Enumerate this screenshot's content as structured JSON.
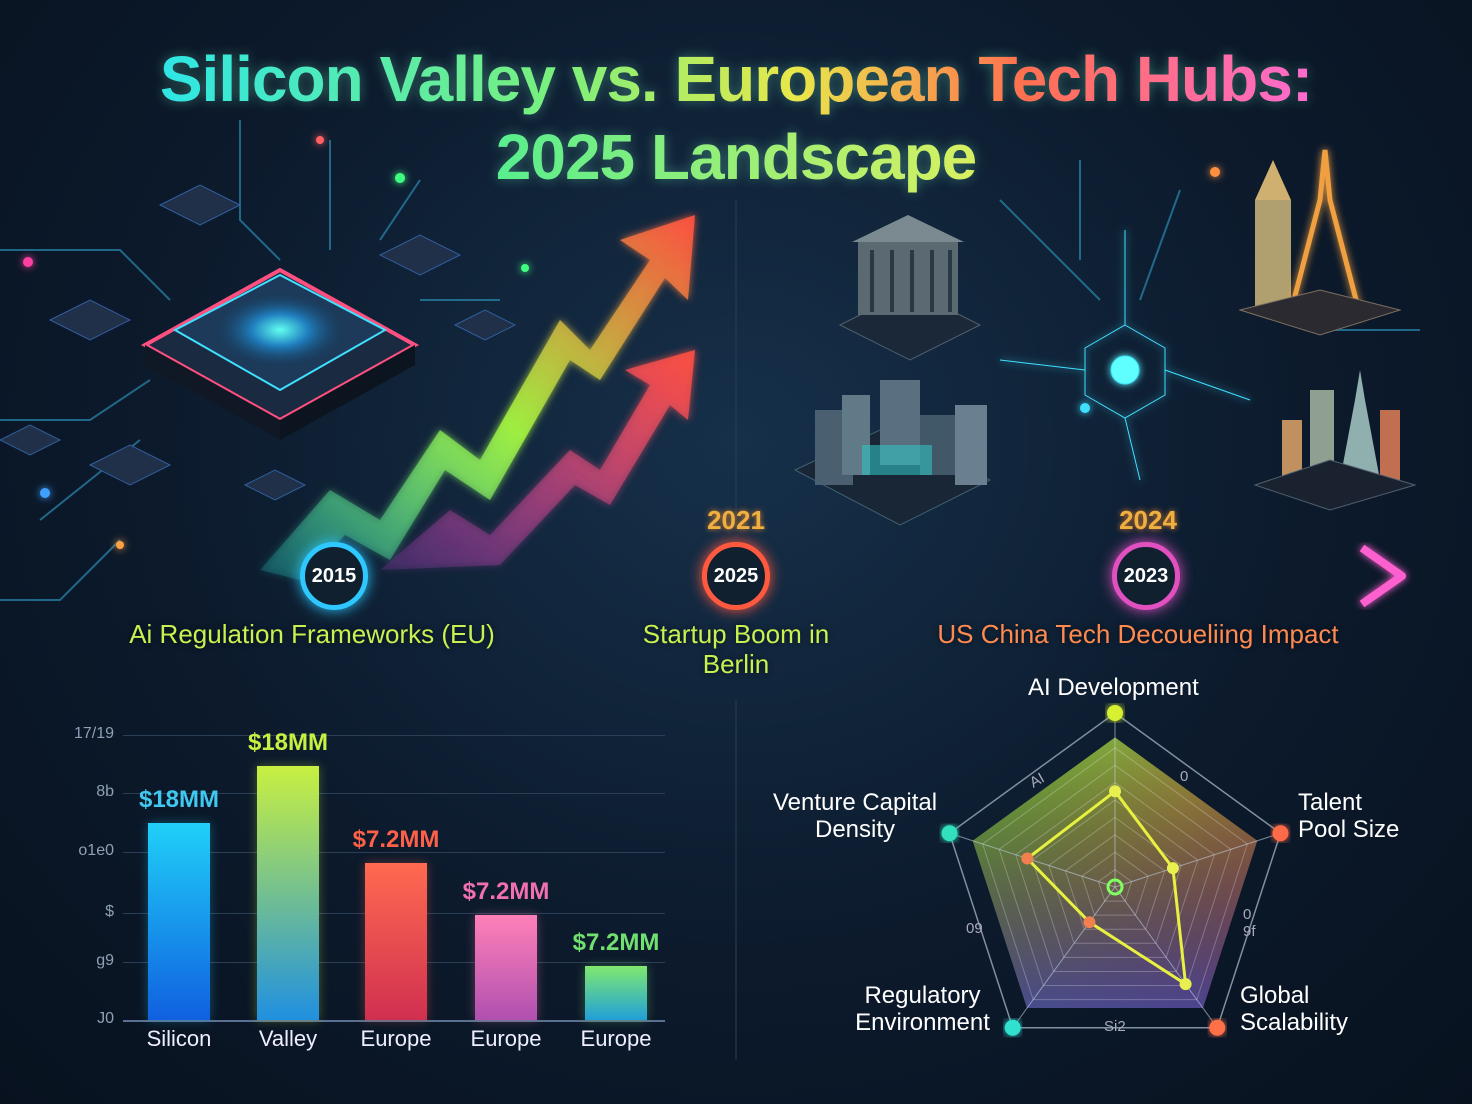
{
  "title": {
    "line1": "Silicon Valley vs. European Tech Hubs:",
    "line2": "2025 Landscape"
  },
  "colors": {
    "background": "#0c1a2c",
    "cyan": "#2ee6e6",
    "green": "#a6f04a",
    "red": "#ff6048",
    "pink": "#ff60c8"
  },
  "decorations": [
    "circuit-chip-illustration",
    "rising-arrow-green",
    "rising-arrow-red",
    "european-landmarks-illustration",
    "skyline-illustration"
  ],
  "timeline": {
    "nodes": [
      {
        "label": "2015",
        "color": "#2ec8ff"
      },
      {
        "label": "2025",
        "color": "#ff5a40"
      },
      {
        "label": "2023",
        "color": "#e050c0"
      }
    ],
    "years_above": [
      "2021",
      "2024"
    ],
    "events": [
      {
        "text": "Ai Regulation Frameworks (EU)",
        "color": "#c8f050"
      },
      {
        "text": "Startup Boom in Berlin",
        "color": "#c8f050"
      },
      {
        "text": "US China Tech Decoueliing Impact",
        "color": "#ff8a50"
      }
    ]
  },
  "chart_data": [
    {
      "type": "bar",
      "categories": [
        "Silicon",
        "Valley",
        "Europe",
        "Europe",
        "Europe"
      ],
      "data_labels": [
        "$18MM",
        "$18MM",
        "$7.2MM",
        "$7.2MM",
        "$7.2MM"
      ],
      "values": [
        0.69,
        0.89,
        0.55,
        0.37,
        0.19
      ],
      "ytick_labels": [
        "17/19",
        "8b",
        "o1e0",
        "$",
        "g9",
        "J0"
      ],
      "grid": true,
      "bar_colors": [
        [
          "#20d0f8",
          "#1060e0"
        ],
        [
          "#c8f040",
          "#2090e0"
        ],
        [
          "#ff6a50",
          "#d03050"
        ],
        [
          "#ff80b8",
          "#b050b0"
        ],
        [
          "#80e870",
          "#20a0d8"
        ]
      ],
      "label_colors": [
        "#40c8f0",
        "#c8f040",
        "#ff6048",
        "#f070b0",
        "#70e070"
      ]
    },
    {
      "type": "radar",
      "axes": [
        "AI Development",
        "Talent Pool Size",
        "Global Scalability",
        "Regulatory Environment",
        "Venture Capital Density"
      ],
      "values": [
        0.55,
        0.35,
        0.69,
        0.25,
        0.53
      ],
      "tick_labels": [
        "AI",
        "0",
        "0 9f",
        "Si2",
        "09"
      ],
      "axis_colors": [
        "#d8f030",
        "#ff6a48",
        "#ff7048",
        "#30e0d0",
        "#30e0c0"
      ]
    }
  ]
}
